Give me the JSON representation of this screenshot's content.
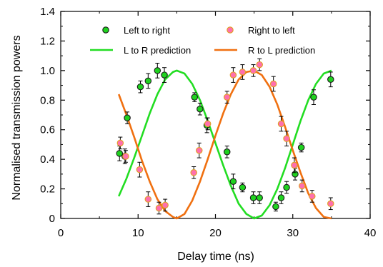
{
  "chart_data": {
    "type": "scatter",
    "xlabel": "Delay time (ns)",
    "ylabel": "Normalised  transmission powers",
    "xlim": [
      0,
      40
    ],
    "ylim": [
      0,
      1.4
    ],
    "xticks": [
      0,
      10,
      20,
      30,
      40
    ],
    "yticks": [
      0,
      0.2,
      0.4,
      0.6,
      0.8,
      1.0,
      1.2,
      1.4
    ],
    "xtick_labels": [
      "0",
      "10",
      "20",
      "30",
      "40"
    ],
    "ytick_labels": [
      "0",
      "0.2",
      "0.4",
      "0.6",
      "0.8",
      "1.0",
      "1.2",
      "1.4"
    ],
    "grid": false,
    "legend_position": "top",
    "series": [
      {
        "name": "Left to right",
        "kind": "points",
        "color": "#1fd21f",
        "edge_color": "#1a1a1a",
        "x": [
          7.6,
          8.3,
          8.6,
          10.3,
          11.3,
          12.5,
          13.4,
          17.3,
          18.0,
          18.9,
          21.5,
          22.3,
          23.5,
          24.9,
          25.7,
          27.8,
          28.5,
          29.2,
          30.3,
          31.1,
          32.7,
          34.9
        ],
        "y": [
          0.44,
          0.42,
          0.68,
          0.89,
          0.93,
          1.0,
          0.97,
          0.82,
          0.74,
          0.63,
          0.45,
          0.25,
          0.21,
          0.14,
          0.14,
          0.08,
          0.14,
          0.21,
          0.3,
          0.48,
          0.82,
          0.94
        ],
        "yerr": [
          0.05,
          0.05,
          0.04,
          0.04,
          0.05,
          0.05,
          0.05,
          0.03,
          0.04,
          0.05,
          0.04,
          0.05,
          0.03,
          0.04,
          0.04,
          0.03,
          0.04,
          0.04,
          0.04,
          0.03,
          0.05,
          0.05
        ]
      },
      {
        "name": "Right to left",
        "kind": "points",
        "color": "#ff6fae",
        "edge_color": "#e0a020",
        "x": [
          7.7,
          8.4,
          10.2,
          11.3,
          12.7,
          13.5,
          17.2,
          17.9,
          19.0,
          21.5,
          22.3,
          23.5,
          24.9,
          25.7,
          27.5,
          28.5,
          29.2,
          30.2,
          31.2,
          32.5,
          34.9
        ],
        "y": [
          0.51,
          0.42,
          0.33,
          0.13,
          0.07,
          0.09,
          0.31,
          0.46,
          0.64,
          0.82,
          0.97,
          0.99,
          1.0,
          1.04,
          0.91,
          0.64,
          0.54,
          0.36,
          0.22,
          0.15,
          0.1
        ],
        "yerr": [
          0.04,
          0.04,
          0.05,
          0.05,
          0.04,
          0.04,
          0.04,
          0.05,
          0.04,
          0.04,
          0.05,
          0.05,
          0.04,
          0.04,
          0.05,
          0.05,
          0.05,
          0.05,
          0.04,
          0.04,
          0.04
        ]
      },
      {
        "name": "L to R prediction",
        "kind": "line",
        "color": "#22dd22",
        "x": [
          7.5,
          8.5,
          9.5,
          10.5,
          11.5,
          12.5,
          13.5,
          14.5,
          15.0,
          16.0,
          17.0,
          18.0,
          19.0,
          20.0,
          21.0,
          22.0,
          23.0,
          24.0,
          25.0,
          26.0,
          27.0,
          28.0,
          29.0,
          30.0,
          31.0,
          32.0,
          33.0,
          34.0,
          35.0
        ],
        "y": [
          0.15,
          0.27,
          0.41,
          0.56,
          0.71,
          0.84,
          0.94,
          0.99,
          1.0,
          0.98,
          0.91,
          0.8,
          0.66,
          0.51,
          0.36,
          0.22,
          0.1,
          0.03,
          0.0,
          0.02,
          0.09,
          0.2,
          0.34,
          0.5,
          0.66,
          0.8,
          0.91,
          0.98,
          1.0
        ]
      },
      {
        "name": "R to L prediction",
        "kind": "line",
        "color": "#f07010",
        "x": [
          7.5,
          8.5,
          9.5,
          10.5,
          11.5,
          12.5,
          13.5,
          14.5,
          15.0,
          16.0,
          17.0,
          18.0,
          19.0,
          20.0,
          21.0,
          22.0,
          23.0,
          24.0,
          25.0,
          26.0,
          27.0,
          28.0,
          29.0,
          30.0,
          31.0,
          32.0,
          33.0,
          34.0,
          35.0
        ],
        "y": [
          0.84,
          0.7,
          0.55,
          0.39,
          0.25,
          0.13,
          0.05,
          0.01,
          0.0,
          0.03,
          0.12,
          0.25,
          0.4,
          0.56,
          0.71,
          0.84,
          0.94,
          0.99,
          1.0,
          0.97,
          0.89,
          0.77,
          0.62,
          0.46,
          0.31,
          0.17,
          0.07,
          0.01,
          0.0
        ]
      }
    ]
  }
}
